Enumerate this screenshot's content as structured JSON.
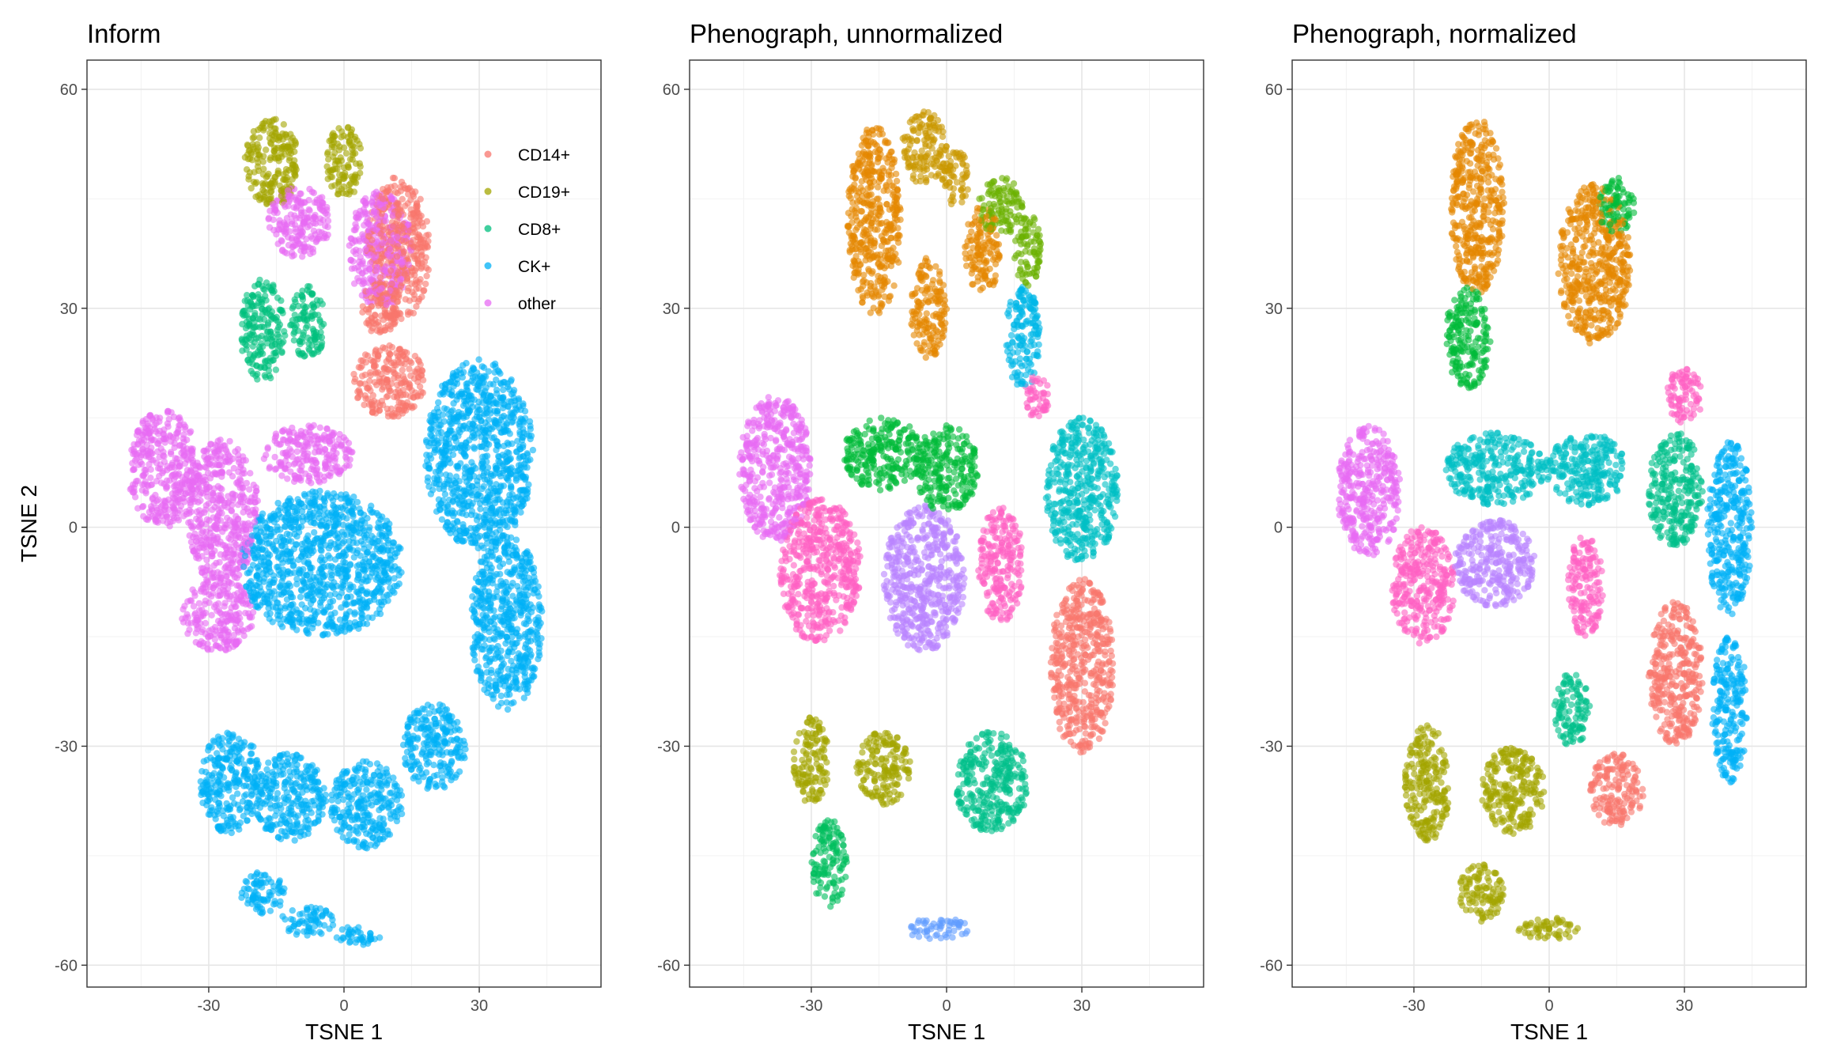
{
  "chart_data": [
    {
      "type": "scatter",
      "title": "Inform",
      "xlabel": "TSNE 1",
      "ylabel": "TSNE 2",
      "xlim": [
        -57,
        57
      ],
      "ylim": [
        -63,
        64
      ],
      "x_ticks": [
        -30,
        0,
        30
      ],
      "y_ticks": [
        -60,
        -30,
        0,
        30,
        60
      ],
      "x_tick_labels": [
        "-30",
        "0",
        "30"
      ],
      "y_tick_labels": [
        "-60",
        "-30",
        "0",
        "30",
        "60"
      ],
      "grid": true,
      "legend": {
        "placement": "top-right",
        "entries": [
          {
            "name": "CD14+",
            "color": "#F8766D"
          },
          {
            "name": "CD19+",
            "color": "#A3A500"
          },
          {
            "name": "CD8+",
            "color": "#00BF7D"
          },
          {
            "name": "CK+",
            "color": "#00B0F6"
          },
          {
            "name": "other",
            "color": "#E76BF3"
          }
        ]
      },
      "series": [
        {
          "name": "CD14+",
          "color": "#F8766D",
          "regions": [
            [
              12,
              38,
              7,
              10
            ],
            [
              10,
              20,
              8,
              5
            ],
            [
              8,
              30,
              4,
              4
            ]
          ]
        },
        {
          "name": "CD19+",
          "color": "#A3A500",
          "regions": [
            [
              -16,
              50,
              6,
              6
            ],
            [
              0,
              50,
              4,
              5
            ]
          ]
        },
        {
          "name": "CD8+",
          "color": "#00BF7D",
          "regions": [
            [
              -18,
              27,
              5,
              7
            ],
            [
              -8,
              28,
              4,
              5
            ]
          ]
        },
        {
          "name": "CK+",
          "color": "#00B0F6",
          "regions": [
            [
              -5,
              -5,
              18,
              10
            ],
            [
              30,
              10,
              12,
              13
            ],
            [
              36,
              -13,
              8,
              12
            ],
            [
              -25,
              -35,
              7,
              7
            ],
            [
              -12,
              -37,
              8,
              6
            ],
            [
              5,
              -38,
              8,
              6
            ],
            [
              20,
              -30,
              7,
              6
            ],
            [
              -18,
              -50,
              5,
              3
            ],
            [
              -8,
              -54,
              6,
              2
            ],
            [
              3,
              -56,
              5,
              1.3
            ]
          ]
        },
        {
          "name": "other",
          "color": "#E76BF3",
          "regions": [
            [
              -40,
              8,
              8,
              8
            ],
            [
              -27,
              2,
              8,
              10
            ],
            [
              -8,
              10,
              10,
              4
            ],
            [
              -10,
              42,
              7,
              5
            ],
            [
              8,
              38,
              7,
              8
            ],
            [
              -28,
              -12,
              8,
              5
            ]
          ]
        }
      ]
    },
    {
      "type": "scatter",
      "title": "Phenograph, unnormalized",
      "xlabel": "TSNE 1",
      "ylabel": "",
      "xlim": [
        -57,
        57
      ],
      "ylim": [
        -63,
        64
      ],
      "x_ticks": [
        -30,
        0,
        30
      ],
      "y_ticks": [
        -60,
        -30,
        0,
        30,
        60
      ],
      "x_tick_labels": [
        "-30",
        "0",
        "30"
      ],
      "y_tick_labels": [
        "-60",
        "-30",
        "0",
        "30",
        "60"
      ],
      "grid": true,
      "series": [
        {
          "color": "#F8766D",
          "regions": [
            [
              30,
              -19,
              7,
              12
            ]
          ]
        },
        {
          "color": "#E58700",
          "regions": [
            [
              -16,
              42,
              6,
              13
            ],
            [
              -4,
              30,
              4,
              7
            ],
            [
              8,
              38,
              4,
              6
            ]
          ]
        },
        {
          "color": "#C99800",
          "regions": [
            [
              -5,
              52,
              5,
              5
            ],
            [
              2,
              48,
              3,
              4
            ]
          ]
        },
        {
          "color": "#A3A500",
          "regions": [
            [
              -30,
              -32,
              4,
              6
            ],
            [
              -14,
              -33,
              6,
              5
            ]
          ]
        },
        {
          "color": "#6BB100",
          "regions": [
            [
              12,
              44,
              5,
              4
            ],
            [
              18,
              38,
              3,
              5
            ]
          ]
        },
        {
          "color": "#00BA38",
          "regions": [
            [
              -14,
              10,
              9,
              5
            ],
            [
              0,
              8,
              7,
              6
            ]
          ]
        },
        {
          "color": "#00BE5D",
          "regions": [
            [
              -26,
              -46,
              4,
              6
            ]
          ]
        },
        {
          "color": "#00C08B",
          "regions": [
            [
              10,
              -35,
              8,
              7
            ]
          ]
        },
        {
          "color": "#00BFC4",
          "regions": [
            [
              30,
              5,
              8,
              10
            ]
          ]
        },
        {
          "color": "#00B8E7",
          "regions": [
            [
              17,
              26,
              4,
              7
            ]
          ]
        },
        {
          "color": "#619CFF",
          "regions": [
            [
              -2,
              -55,
              7,
              1.5
            ]
          ]
        },
        {
          "color": "#B983FF",
          "regions": [
            [
              -5,
              -7,
              9,
              10
            ]
          ]
        },
        {
          "color": "#E76BF3",
          "regions": [
            [
              -38,
              8,
              8,
              10
            ]
          ]
        },
        {
          "color": "#FF61C3",
          "regions": [
            [
              -28,
              -6,
              9,
              10
            ],
            [
              12,
              -5,
              5,
              8
            ],
            [
              20,
              18,
              3,
              3
            ]
          ]
        }
      ]
    },
    {
      "type": "scatter",
      "title": "Phenograph, normalized",
      "xlabel": "TSNE 1",
      "ylabel": "",
      "xlim": [
        -57,
        57
      ],
      "ylim": [
        -63,
        64
      ],
      "x_ticks": [
        -30,
        0,
        30
      ],
      "y_ticks": [
        -60,
        -30,
        0,
        30,
        60
      ],
      "x_tick_labels": [
        "-30",
        "0",
        "30"
      ],
      "y_tick_labels": [
        "-60",
        "-30",
        "0",
        "30",
        "60"
      ],
      "grid": true,
      "series": [
        {
          "color": "#F8766D",
          "regions": [
            [
              28,
              -20,
              6,
              10
            ],
            [
              15,
              -36,
              6,
              5
            ]
          ]
        },
        {
          "color": "#E58700",
          "regions": [
            [
              -16,
              44,
              6,
              12
            ],
            [
              10,
              36,
              8,
              11
            ]
          ]
        },
        {
          "color": "#A3A500",
          "regions": [
            [
              -27,
              -35,
              5,
              8
            ],
            [
              -8,
              -36,
              7,
              6
            ],
            [
              -15,
              -50,
              5,
              4
            ],
            [
              0,
              -55,
              7,
              1.5
            ]
          ]
        },
        {
          "color": "#00BA38",
          "regions": [
            [
              -18,
              26,
              5,
              7
            ],
            [
              15,
              44,
              4,
              4
            ]
          ]
        },
        {
          "color": "#00C08B",
          "regions": [
            [
              28,
              5,
              6,
              8
            ],
            [
              5,
              -25,
              4,
              5
            ]
          ]
        },
        {
          "color": "#00BFC4",
          "regions": [
            [
              -12,
              8,
              11,
              5
            ],
            [
              8,
              8,
              9,
              5
            ]
          ]
        },
        {
          "color": "#00B0F6",
          "regions": [
            [
              40,
              0,
              5,
              12
            ],
            [
              40,
              -25,
              4,
              10
            ]
          ]
        },
        {
          "color": "#B983FF",
          "regions": [
            [
              -12,
              -5,
              9,
              6
            ]
          ]
        },
        {
          "color": "#E76BF3",
          "regions": [
            [
              -40,
              5,
              7,
              9
            ]
          ]
        },
        {
          "color": "#FF61C3",
          "regions": [
            [
              -28,
              -8,
              7,
              8
            ],
            [
              8,
              -8,
              4,
              7
            ],
            [
              30,
              18,
              4,
              4
            ]
          ]
        }
      ]
    }
  ]
}
